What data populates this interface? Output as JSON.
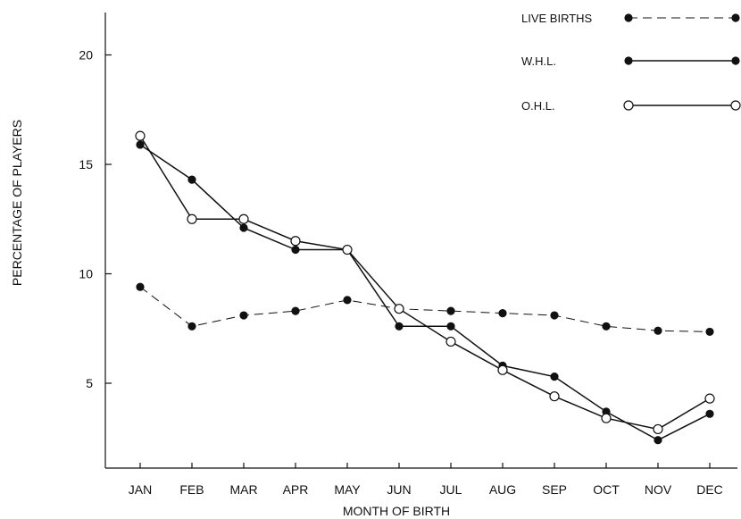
{
  "chart_data": {
    "type": "line",
    "title": "",
    "xlabel": "MONTH OF BIRTH",
    "ylabel": "PERCENTAGE OF PLAYERS",
    "categories": [
      "JAN",
      "FEB",
      "MAR",
      "APR",
      "MAY",
      "JUN",
      "JUL",
      "AUG",
      "SEP",
      "OCT",
      "NOV",
      "DEC"
    ],
    "y_ticks": [
      "5",
      "10",
      "15",
      "20"
    ],
    "ylim": [
      0.5,
      22.5
    ],
    "grid": false,
    "legend_position": "top-right",
    "series": [
      {
        "name": "LIVE BIRTHS",
        "line_style": "dashed",
        "marker": "filled",
        "values": [
          9.4,
          7.6,
          8.1,
          8.3,
          8.8,
          8.4,
          8.3,
          8.2,
          8.1,
          7.6,
          7.4,
          7.35
        ]
      },
      {
        "name": "W.H.L.",
        "line_style": "solid",
        "marker": "filled",
        "values": [
          15.9,
          14.3,
          12.1,
          11.1,
          11.1,
          7.6,
          7.6,
          5.8,
          5.3,
          3.7,
          2.4,
          3.6
        ]
      },
      {
        "name": "O.H.L.",
        "line_style": "solid",
        "marker": "open",
        "values": [
          16.3,
          12.5,
          12.5,
          11.5,
          11.1,
          8.4,
          6.9,
          5.6,
          4.4,
          3.4,
          2.9,
          4.3
        ]
      }
    ],
    "colors": {
      "ink": "#111111",
      "background": "#ffffff"
    }
  }
}
